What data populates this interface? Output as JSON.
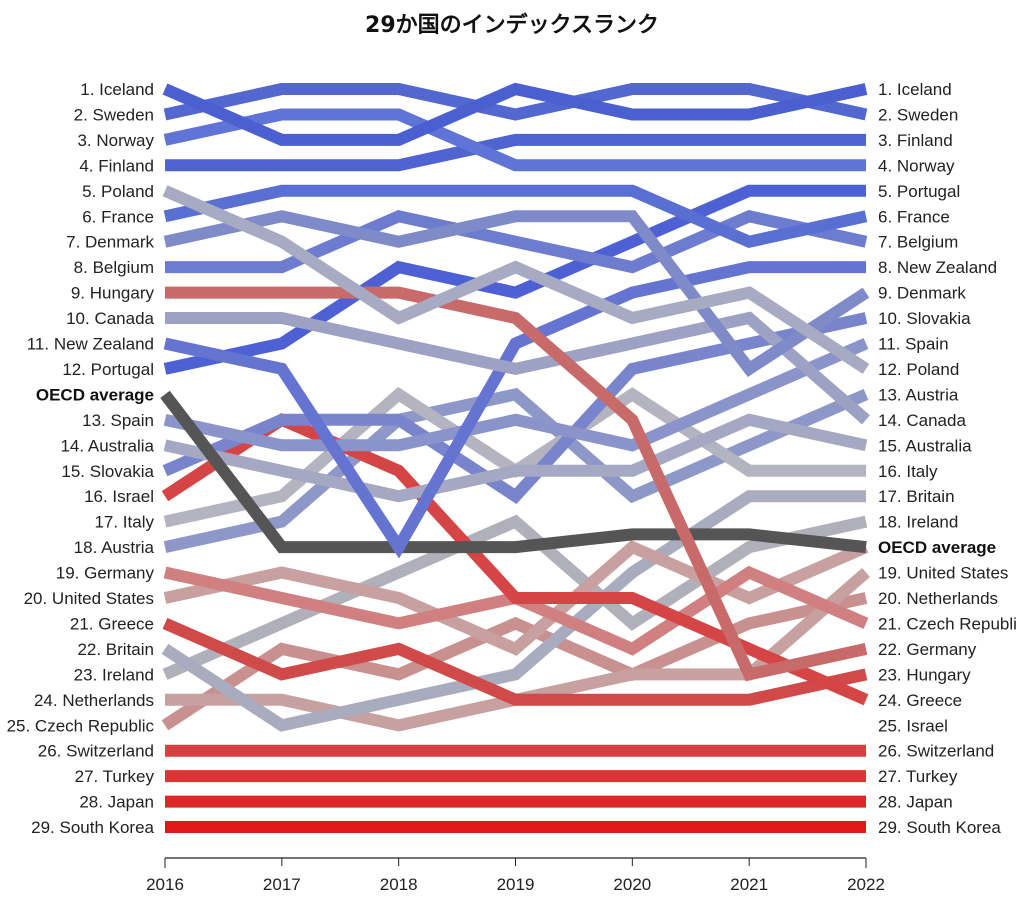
{
  "chart_data": {
    "type": "line",
    "title": "29か国のインデックスランク",
    "x": [
      "2016",
      "2017",
      "2018",
      "2019",
      "2020",
      "2021",
      "2022"
    ],
    "ylim": [
      1,
      30
    ],
    "left_labels": [
      "1. Iceland",
      "2. Sweden",
      "3. Norway",
      "4. Finland",
      "5. Poland",
      "6. France",
      "7. Denmark",
      "8. Belgium",
      "9. Hungary",
      "10. Canada",
      "11. New Zealand",
      "12. Portugal",
      "OECD average",
      "13. Spain",
      "14. Australia",
      "15. Slovakia",
      "16. Israel",
      "17. Italy",
      "18. Austria",
      "19. Germany",
      "20. United States",
      "21. Greece",
      "22. Britain",
      "23. Ireland",
      "24. Netherlands",
      "25. Czech Republic",
      "26. Switzerland",
      "27. Turkey",
      "28. Japan",
      "29. South Korea"
    ],
    "right_labels": [
      "1. Iceland",
      "2. Sweden",
      "3. Finland",
      "4. Norway",
      "5. Portugal",
      "6. France",
      "7. Belgium",
      "8. New Zealand",
      "9. Denmark",
      "10. Slovakia",
      "11. Spain",
      "12. Poland",
      "13. Austria",
      "14. Canada",
      "15. Australia",
      "16. Italy",
      "17. Britain",
      "18. Ireland",
      "OECD average",
      "19. United States",
      "20. Netherlands",
      "21. Czech Republi",
      "22. Germany",
      "23. Hungary",
      "24. Greece",
      "25. Israel",
      "26. Switzerland",
      "27. Turkey",
      "28. Japan",
      "29. South Korea"
    ],
    "series": [
      {
        "name": "Iceland",
        "color": "#4a5fd0",
        "values": [
          1,
          3,
          3,
          1,
          2,
          2,
          1
        ]
      },
      {
        "name": "Sweden",
        "color": "#5268d0",
        "values": [
          2,
          1,
          1,
          2,
          1,
          1,
          2
        ]
      },
      {
        "name": "Norway",
        "color": "#5f74d6",
        "values": [
          3,
          2,
          2,
          4,
          4,
          4,
          4
        ]
      },
      {
        "name": "Finland",
        "color": "#4f63d1",
        "values": [
          4,
          4,
          4,
          3,
          3,
          3,
          3
        ]
      },
      {
        "name": "Poland",
        "color": "#a6aac2",
        "values": [
          5,
          7,
          10,
          8,
          10,
          9,
          12
        ]
      },
      {
        "name": "France",
        "color": "#5a6fd2",
        "values": [
          6,
          5,
          5,
          5,
          5,
          7,
          6
        ]
      },
      {
        "name": "Denmark",
        "color": "#7f8ac8",
        "values": [
          7,
          6,
          7,
          6,
          6,
          12,
          9
        ]
      },
      {
        "name": "Belgium",
        "color": "#6e7cd0",
        "values": [
          8,
          8,
          6,
          7,
          8,
          6,
          7
        ]
      },
      {
        "name": "Hungary",
        "color": "#c86a6a",
        "values": [
          9,
          9,
          9,
          10,
          14,
          24,
          23
        ]
      },
      {
        "name": "Canada",
        "color": "#9da2c4",
        "values": [
          10,
          10,
          11,
          12,
          11,
          10,
          14
        ]
      },
      {
        "name": "New Zealand",
        "color": "#6474d0",
        "values": [
          11,
          12,
          19,
          11,
          9,
          8,
          8
        ]
      },
      {
        "name": "Portugal",
        "color": "#4d61d4",
        "values": [
          12,
          11,
          8,
          9,
          7,
          5,
          5
        ]
      },
      {
        "name": "OECD average",
        "color": "#555555",
        "values": [
          13,
          19,
          19,
          19,
          18.5,
          18.5,
          19
        ]
      },
      {
        "name": "Spain",
        "color": "#8a94cb",
        "values": [
          14,
          15,
          15,
          14,
          15,
          13,
          11
        ]
      },
      {
        "name": "Australia",
        "color": "#a4a8c2",
        "values": [
          15,
          16,
          17,
          16,
          16,
          14,
          15
        ]
      },
      {
        "name": "Slovakia",
        "color": "#7885cc",
        "values": [
          16,
          14,
          14,
          17,
          12,
          11,
          10
        ]
      },
      {
        "name": "Israel",
        "color": "#d64545",
        "values": [
          17,
          14,
          16,
          21,
          21,
          23,
          25
        ]
      },
      {
        "name": "Italy",
        "color": "#b4b4c0",
        "values": [
          18,
          17,
          13,
          16,
          13,
          16,
          16
        ]
      },
      {
        "name": "Austria",
        "color": "#8e98c8",
        "values": [
          19,
          18,
          14,
          13,
          17,
          15,
          13
        ]
      },
      {
        "name": "Germany",
        "color": "#d08080",
        "values": [
          20,
          21,
          22,
          21,
          23,
          20,
          22
        ]
      },
      {
        "name": "United States",
        "color": "#c9a0a0",
        "values": [
          21,
          20,
          21,
          23,
          19,
          21,
          19
        ]
      },
      {
        "name": "Greece",
        "color": "#d04a4a",
        "values": [
          22,
          24,
          23,
          25,
          25,
          25,
          24
        ]
      },
      {
        "name": "Britain",
        "color": "#a9abbe",
        "values": [
          23,
          26,
          25,
          24,
          20,
          17,
          17
        ]
      },
      {
        "name": "Ireland",
        "color": "#b0b0bb",
        "values": [
          24,
          22,
          20,
          18,
          22,
          19,
          18
        ]
      },
      {
        "name": "Netherlands",
        "color": "#c7a0a0",
        "values": [
          25,
          25,
          26,
          25,
          24,
          24,
          20
        ]
      },
      {
        "name": "Czech Republic",
        "color": "#c99090",
        "values": [
          26,
          23,
          24,
          22,
          24,
          22,
          21
        ]
      },
      {
        "name": "Switzerland",
        "color": "#d84040",
        "values": [
          27,
          27,
          27,
          27,
          27,
          27,
          27
        ]
      },
      {
        "name": "Turkey",
        "color": "#db3535",
        "values": [
          28,
          28,
          28,
          28,
          28,
          28,
          28
        ]
      },
      {
        "name": "Japan",
        "color": "#de2828",
        "values": [
          29,
          29,
          29,
          29,
          29,
          29,
          29
        ]
      },
      {
        "name": "South Korea",
        "color": "#e01818",
        "values": [
          30,
          30,
          30,
          30,
          30,
          30,
          30
        ]
      }
    ]
  }
}
